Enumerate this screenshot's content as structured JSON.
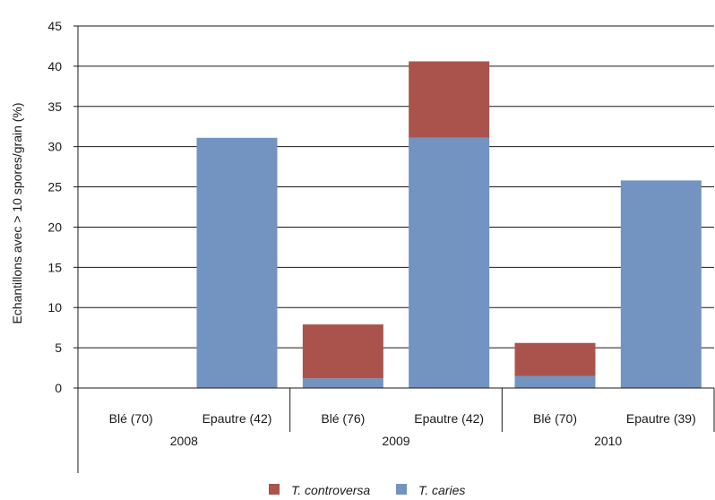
{
  "chart_data": {
    "type": "bar",
    "stacked": true,
    "ylabel": "Echantillons avec > 10 spores/grain (%)",
    "xlabel": "",
    "ylim": [
      0,
      45
    ],
    "yticks": [
      0,
      5,
      10,
      15,
      20,
      25,
      30,
      35,
      40,
      45
    ],
    "grid": true,
    "legend_position": "bottom",
    "groups": [
      {
        "label": "2008",
        "categories": [
          "Blé (70)",
          "Epautre (42)"
        ]
      },
      {
        "label": "2009",
        "categories": [
          "Blé (76)",
          "Epautre (42)"
        ]
      },
      {
        "label": "2010",
        "categories": [
          "Blé (70)",
          "Epautre (39)"
        ]
      }
    ],
    "categories": [
      "Blé (70)",
      "Epautre (42)",
      "Blé (76)",
      "Epautre (42)",
      "Blé (70)",
      "Epautre (39)"
    ],
    "series": [
      {
        "name": "T. caries",
        "color": "#7394c0",
        "values": [
          0,
          31.1,
          1.2,
          31.1,
          1.5,
          25.8
        ]
      },
      {
        "name": "T. controversa",
        "color": "#a9534c",
        "values": [
          0,
          0,
          6.7,
          9.5,
          4.1,
          0
        ]
      }
    ],
    "legend_order": [
      "T. controversa",
      "T. caries"
    ]
  }
}
